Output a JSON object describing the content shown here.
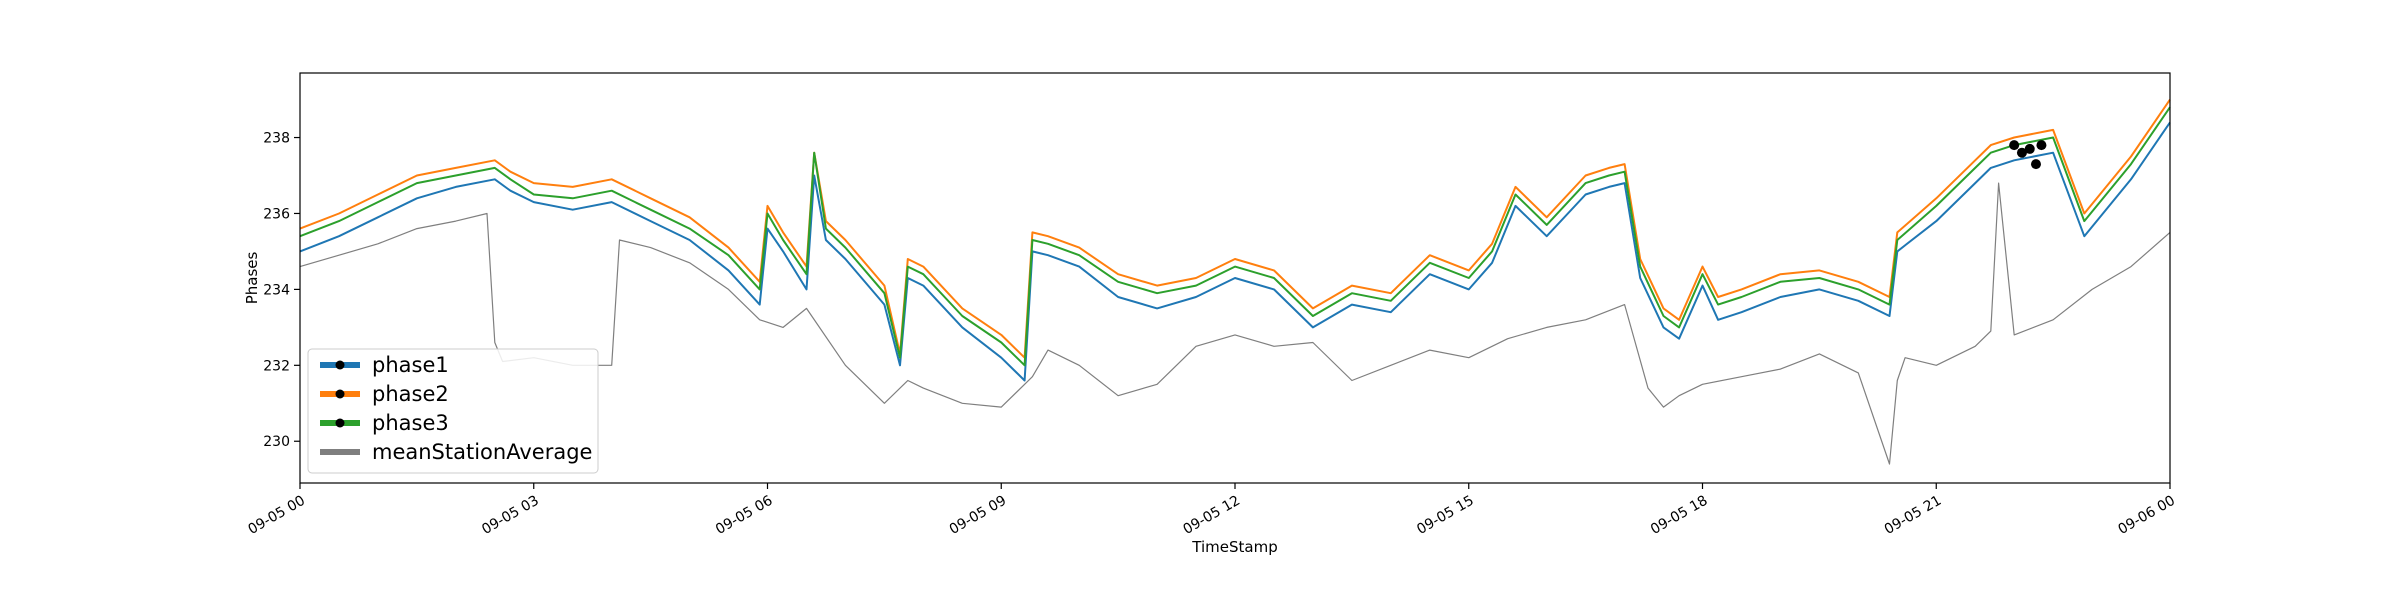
{
  "chart_data": {
    "type": "line",
    "title": "",
    "xlabel": "TimeStamp",
    "ylabel": "Phases",
    "xlim": [
      "09-05 00:00",
      "09-06 00:00"
    ],
    "ylim": [
      228.9,
      239.7
    ],
    "x_unit": "hours since 09-05 00",
    "x_ticks": [
      {
        "value": 0,
        "label": "09-05 00"
      },
      {
        "value": 3,
        "label": "09-05 03"
      },
      {
        "value": 6,
        "label": "09-05 06"
      },
      {
        "value": 9,
        "label": "09-05 09"
      },
      {
        "value": 12,
        "label": "09-05 12"
      },
      {
        "value": 15,
        "label": "09-05 15"
      },
      {
        "value": 18,
        "label": "09-05 18"
      },
      {
        "value": 21,
        "label": "09-05 21"
      },
      {
        "value": 24,
        "label": "09-06 00"
      }
    ],
    "y_ticks": [
      {
        "value": 230,
        "label": "230"
      },
      {
        "value": 232,
        "label": "232"
      },
      {
        "value": 234,
        "label": "234"
      },
      {
        "value": 236,
        "label": "236"
      },
      {
        "value": 238,
        "label": "238"
      }
    ],
    "grid": false,
    "legend_position": "lower-left",
    "series": [
      {
        "name": "phase1",
        "color": "#1f77b4",
        "x": [
          0,
          0.5,
          1,
          1.5,
          2,
          2.5,
          2.7,
          3,
          3.5,
          4,
          4.5,
          5,
          5.5,
          5.9,
          6,
          6.2,
          6.5,
          6.6,
          6.75,
          7,
          7.5,
          7.7,
          7.8,
          8,
          8.5,
          9,
          9.3,
          9.4,
          9.6,
          10,
          10.5,
          11,
          11.5,
          12,
          12.5,
          13,
          13.5,
          14,
          14.5,
          15,
          15.3,
          15.6,
          16,
          16.5,
          16.8,
          17,
          17.2,
          17.5,
          17.7,
          18,
          18.2,
          18.5,
          19,
          19.5,
          20,
          20.4,
          20.5,
          21,
          21.5,
          21.7,
          22,
          22.5,
          22.9,
          23.5,
          24
        ],
        "y": [
          235.0,
          235.4,
          235.9,
          236.4,
          236.7,
          236.9,
          236.6,
          236.3,
          236.1,
          236.3,
          235.8,
          235.3,
          234.5,
          233.6,
          235.6,
          235.0,
          234.0,
          237.0,
          235.3,
          234.8,
          233.6,
          232.0,
          234.3,
          234.1,
          233.0,
          232.2,
          231.6,
          235.0,
          234.9,
          234.6,
          233.8,
          233.5,
          233.8,
          234.3,
          234.0,
          233.0,
          233.6,
          233.4,
          234.4,
          234.0,
          234.7,
          236.2,
          235.4,
          236.5,
          236.7,
          236.8,
          234.3,
          233.0,
          232.7,
          234.1,
          233.2,
          233.4,
          233.8,
          234.0,
          233.7,
          233.3,
          235.0,
          235.8,
          236.8,
          237.2,
          237.4,
          237.6,
          235.4,
          236.9,
          238.4
        ]
      },
      {
        "name": "phase2",
        "color": "#ff7f0e",
        "x": [
          0,
          0.5,
          1,
          1.5,
          2,
          2.5,
          2.7,
          3,
          3.5,
          4,
          4.5,
          5,
          5.5,
          5.9,
          6,
          6.2,
          6.5,
          6.6,
          6.75,
          7,
          7.5,
          7.7,
          7.8,
          8,
          8.5,
          9,
          9.3,
          9.4,
          9.6,
          10,
          10.5,
          11,
          11.5,
          12,
          12.5,
          13,
          13.5,
          14,
          14.5,
          15,
          15.3,
          15.6,
          16,
          16.5,
          16.8,
          17,
          17.2,
          17.5,
          17.7,
          18,
          18.2,
          18.5,
          19,
          19.5,
          20,
          20.4,
          20.5,
          21,
          21.5,
          21.7,
          22,
          22.5,
          22.9,
          23.5,
          24
        ],
        "y": [
          235.6,
          236.0,
          236.5,
          237.0,
          237.2,
          237.4,
          237.1,
          236.8,
          236.7,
          236.9,
          236.4,
          235.9,
          235.1,
          234.2,
          236.2,
          235.5,
          234.6,
          237.6,
          235.8,
          235.3,
          234.1,
          232.3,
          234.8,
          234.6,
          233.5,
          232.8,
          232.2,
          235.5,
          235.4,
          235.1,
          234.4,
          234.1,
          234.3,
          234.8,
          234.5,
          233.5,
          234.1,
          233.9,
          234.9,
          234.5,
          235.2,
          236.7,
          235.9,
          237.0,
          237.2,
          237.3,
          234.8,
          233.5,
          233.2,
          234.6,
          233.8,
          234.0,
          234.4,
          234.5,
          234.2,
          233.8,
          235.5,
          236.4,
          237.4,
          237.8,
          238.0,
          238.2,
          236.0,
          237.5,
          239.0
        ]
      },
      {
        "name": "phase3",
        "color": "#2ca02c",
        "x": [
          0,
          0.5,
          1,
          1.5,
          2,
          2.5,
          2.7,
          3,
          3.5,
          4,
          4.5,
          5,
          5.5,
          5.9,
          6,
          6.2,
          6.5,
          6.6,
          6.75,
          7,
          7.5,
          7.7,
          7.8,
          8,
          8.5,
          9,
          9.3,
          9.4,
          9.6,
          10,
          10.5,
          11,
          11.5,
          12,
          12.5,
          13,
          13.5,
          14,
          14.5,
          15,
          15.3,
          15.6,
          16,
          16.5,
          16.8,
          17,
          17.2,
          17.5,
          17.7,
          18,
          18.2,
          18.5,
          19,
          19.5,
          20,
          20.4,
          20.5,
          21,
          21.5,
          21.7,
          22,
          22.5,
          22.9,
          23.5,
          24
        ],
        "y": [
          235.4,
          235.8,
          236.3,
          236.8,
          237.0,
          237.2,
          236.9,
          236.5,
          236.4,
          236.6,
          236.1,
          235.6,
          234.9,
          234.0,
          236.0,
          235.3,
          234.4,
          237.6,
          235.6,
          235.1,
          233.9,
          232.2,
          234.6,
          234.4,
          233.3,
          232.6,
          232.0,
          235.3,
          235.2,
          234.9,
          234.2,
          233.9,
          234.1,
          234.6,
          234.3,
          233.3,
          233.9,
          233.7,
          234.7,
          234.3,
          235.0,
          236.5,
          235.7,
          236.8,
          237.0,
          237.1,
          234.6,
          233.3,
          233.0,
          234.4,
          233.6,
          233.8,
          234.2,
          234.3,
          234.0,
          233.6,
          235.3,
          236.2,
          237.2,
          237.6,
          237.8,
          238.0,
          235.8,
          237.3,
          238.8
        ]
      },
      {
        "name": "meanStationAverage",
        "color": "#7f7f7f",
        "x": [
          0,
          0.5,
          1,
          1.5,
          2,
          2.4,
          2.5,
          2.6,
          3,
          3.5,
          4,
          4.1,
          4.5,
          5,
          5.5,
          5.9,
          6.2,
          6.5,
          7,
          7.5,
          7.8,
          8,
          8.5,
          9,
          9.4,
          9.6,
          10,
          10.5,
          11,
          11.5,
          12,
          12.5,
          13,
          13.5,
          14,
          14.5,
          15,
          15.5,
          16,
          16.5,
          17,
          17.3,
          17.5,
          17.7,
          18,
          18.5,
          19,
          19.5,
          20,
          20.4,
          20.5,
          20.6,
          21,
          21.5,
          21.7,
          21.8,
          22,
          22.5,
          23,
          23.5,
          24
        ],
        "y": [
          234.6,
          234.9,
          235.2,
          235.6,
          235.8,
          236.0,
          232.6,
          232.1,
          232.2,
          232.0,
          232.0,
          235.3,
          235.1,
          234.7,
          234.0,
          233.2,
          233.0,
          233.5,
          232.0,
          231.0,
          231.6,
          231.4,
          231.0,
          230.9,
          231.7,
          232.4,
          232.0,
          231.2,
          231.5,
          232.5,
          232.8,
          232.5,
          232.6,
          231.6,
          232.0,
          232.4,
          232.2,
          232.7,
          233.0,
          233.2,
          233.6,
          231.4,
          230.9,
          231.2,
          231.5,
          231.7,
          231.9,
          232.3,
          231.8,
          229.4,
          231.6,
          232.2,
          232.0,
          232.5,
          232.9,
          236.8,
          232.8,
          233.2,
          234.0,
          234.6,
          235.5
        ]
      }
    ],
    "markers": {
      "color": "#000000",
      "points": [
        {
          "x": 22.0,
          "y": 237.8
        },
        {
          "x": 22.1,
          "y": 237.6
        },
        {
          "x": 22.2,
          "y": 237.7
        },
        {
          "x": 22.28,
          "y": 237.3
        },
        {
          "x": 22.35,
          "y": 237.8
        }
      ]
    }
  }
}
